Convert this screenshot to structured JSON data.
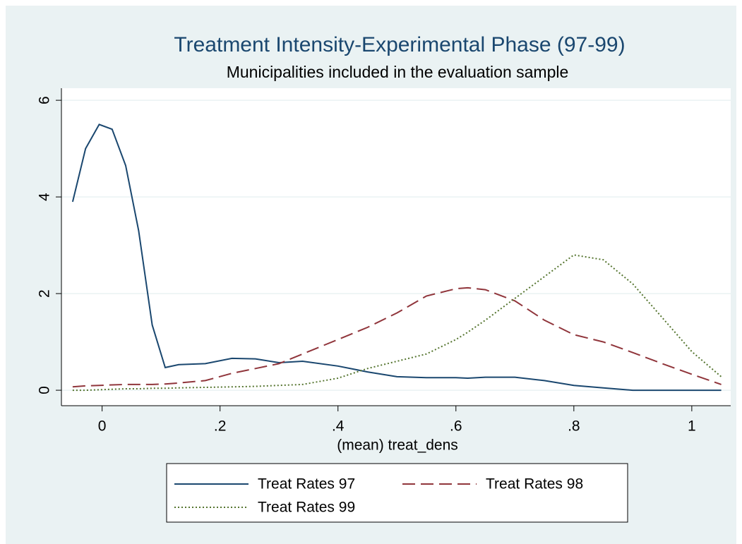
{
  "chart_data": {
    "type": "line",
    "title": "Treatment Intensity-Experimental Phase (97-99)",
    "subtitle": "Municipalities included in the evaluation sample",
    "x_label": "(mean) treat_dens",
    "x": [
      -0.05,
      -0.028,
      -0.005,
      0.017,
      0.04,
      0.062,
      0.085,
      0.107,
      0.13,
      0.175,
      0.22,
      0.26,
      0.3,
      0.34,
      0.4,
      0.45,
      0.5,
      0.55,
      0.6,
      0.62,
      0.65,
      0.7,
      0.75,
      0.8,
      0.85,
      0.9,
      0.95,
      1.0,
      1.05
    ],
    "series": [
      {
        "name": "Treat Rates 97",
        "color": "#1a476f",
        "dash": "solid",
        "values": [
          3.9,
          5.0,
          5.5,
          5.4,
          4.65,
          3.3,
          1.35,
          0.47,
          0.53,
          0.55,
          0.66,
          0.65,
          0.57,
          0.6,
          0.5,
          0.38,
          0.28,
          0.26,
          0.26,
          0.25,
          0.27,
          0.27,
          0.2,
          0.1,
          0.05,
          0,
          0,
          0,
          0
        ]
      },
      {
        "name": "Treat Rates 98",
        "color": "#90353b",
        "dash": "dashed",
        "values": [
          0.07,
          0.09,
          0.1,
          0.11,
          0.12,
          0.12,
          0.12,
          0.13,
          0.15,
          0.2,
          0.35,
          0.45,
          0.55,
          0.75,
          1.05,
          1.3,
          1.6,
          1.95,
          2.1,
          2.12,
          2.08,
          1.85,
          1.45,
          1.15,
          1.0,
          0.78,
          0.55,
          0.33,
          0.12
        ]
      },
      {
        "name": "Treat Rates 99",
        "color": "#55752f",
        "dash": "dotted",
        "values": [
          0,
          0,
          0.01,
          0.02,
          0.03,
          0.03,
          0.04,
          0.04,
          0.05,
          0.06,
          0.07,
          0.08,
          0.1,
          0.12,
          0.25,
          0.45,
          0.6,
          0.75,
          1.05,
          1.2,
          1.45,
          1.9,
          2.35,
          2.8,
          2.7,
          2.2,
          1.5,
          0.8,
          0.28
        ]
      }
    ],
    "xlim": [
      -0.069,
      1.066
    ],
    "ylim": [
      -0.32,
      6.25
    ],
    "xticks": [
      0,
      {
        "value": 0.2,
        "label": ".2"
      },
      {
        "value": 0.4,
        "label": ".4"
      },
      {
        "value": 0.6,
        "label": ".6"
      },
      {
        "value": 0.8,
        "label": ".8"
      },
      1
    ],
    "yticks": [
      0,
      2,
      4,
      6
    ],
    "grid": true
  }
}
